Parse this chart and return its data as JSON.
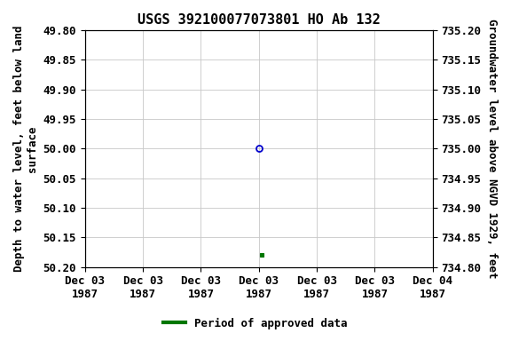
{
  "title": "USGS 392100077073801 HO Ab 132",
  "ylabel_left": "Depth to water level, feet below land\nsurface",
  "ylabel_right": "Groundwater level above NGVD 1929, feet",
  "ylim_left": [
    49.8,
    50.2
  ],
  "ylim_right_top": 735.2,
  "ylim_right_bottom": 734.8,
  "xlim": [
    0,
    6
  ],
  "xtick_positions": [
    0,
    1,
    2,
    3,
    4,
    5,
    6
  ],
  "xtick_labels": [
    "Dec 03\n1987",
    "Dec 03\n1987",
    "Dec 03\n1987",
    "Dec 03\n1987",
    "Dec 03\n1987",
    "Dec 03\n1987",
    "Dec 04\n1987"
  ],
  "ytick_left": [
    49.8,
    49.85,
    49.9,
    49.95,
    50.0,
    50.05,
    50.1,
    50.15,
    50.2
  ],
  "ytick_right_labels": [
    "735.20",
    "735.15",
    "735.10",
    "735.05",
    "735.00",
    "734.95",
    "734.90",
    "734.85",
    "734.80"
  ],
  "point_open_x": 3.0,
  "point_open_y": 50.0,
  "point_open_color": "#0000cc",
  "point_filled_x": 3.05,
  "point_filled_y": 50.18,
  "point_filled_color": "#007700",
  "legend_label": "Period of approved data",
  "legend_color": "#007700",
  "bg_color": "#ffffff",
  "grid_color": "#c8c8c8",
  "title_fontsize": 11,
  "axis_fontsize": 9,
  "tick_fontsize": 9,
  "label_fontsize": 9
}
